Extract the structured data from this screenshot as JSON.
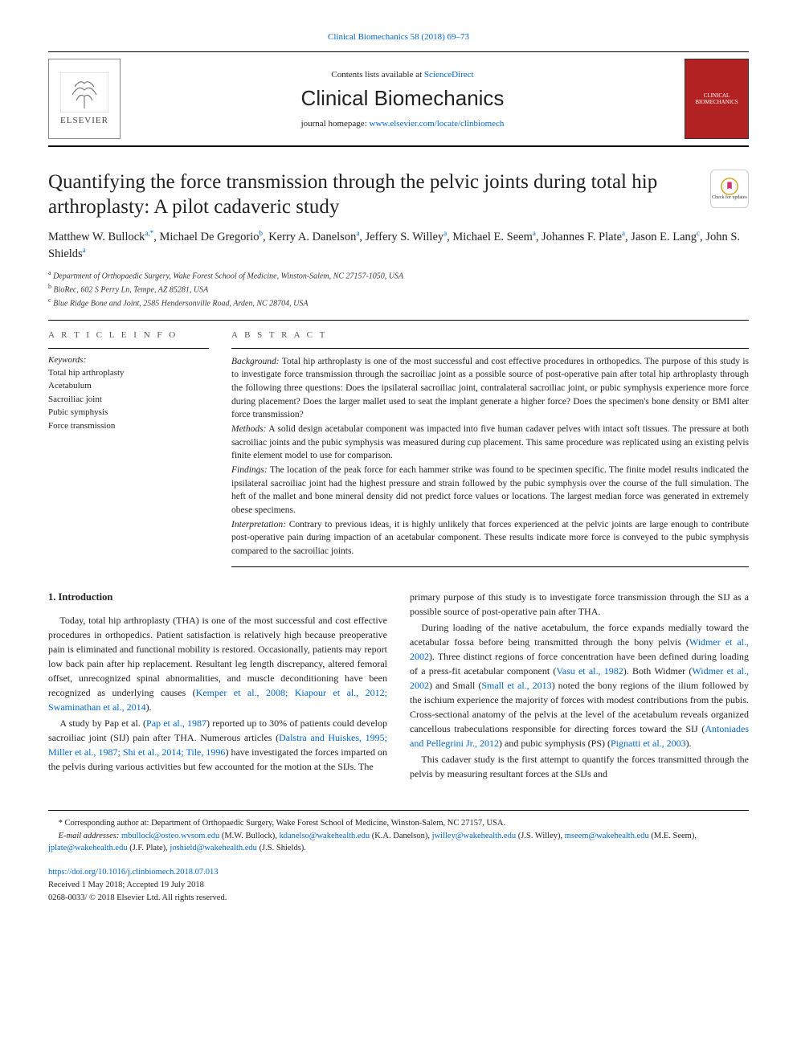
{
  "top_citation_link": "Clinical Biomechanics 58 (2018) 69–73",
  "header": {
    "contents_line_pre": "Contents lists available at ",
    "contents_line_link": "ScienceDirect",
    "journal_name": "Clinical Biomechanics",
    "homepage_pre": "journal homepage: ",
    "homepage_link": "www.elsevier.com/locate/clinbiomech",
    "publisher_name": "ELSEVIER",
    "cover_label": "CLINICAL BIOMECHANICS"
  },
  "check_updates_label": "Check for updates",
  "article": {
    "title": "Quantifying the force transmission through the pelvic joints during total hip arthroplasty: A pilot cadaveric study",
    "authors_html": "Matthew W. Bullock<sup>a,*</sup>, Michael De Gregorio<sup>b</sup>, Kerry A. Danelson<sup>a</sup>, Jeffery S. Willey<sup>a</sup>, Michael E. Seem<sup>a</sup>, Johannes F. Plate<sup>a</sup>, Jason E. Lang<sup>c</sup>, John S. Shields<sup>a</sup>",
    "affiliations": [
      {
        "sup": "a",
        "text": "Department of Orthopaedic Surgery, Wake Forest School of Medicine, Winston-Salem, NC 27157-1050, USA"
      },
      {
        "sup": "b",
        "text": "BioRec, 602 S Perry Ln, Tempe, AZ 85281, USA"
      },
      {
        "sup": "c",
        "text": "Blue Ridge Bone and Joint, 2585 Hendersonville Road, Arden, NC 28704, USA"
      }
    ]
  },
  "labels": {
    "article_info": "A R T I C L E   I N F O",
    "abstract": "A B S T R A C T",
    "keywords_head": "Keywords:"
  },
  "keywords": [
    "Total hip arthroplasty",
    "Acetabulum",
    "Sacroiliac joint",
    "Pubic symphysis",
    "Force transmission"
  ],
  "abstract": {
    "background_label": "Background:",
    "background": " Total hip arthroplasty is one of the most successful and cost effective procedures in orthopedics. The purpose of this study is to investigate force transmission through the sacroiliac joint as a possible source of post-operative pain after total hip arthroplasty through the following three questions: Does the ipsilateral sacroiliac joint, contralateral sacroiliac joint, or pubic symphysis experience more force during placement? Does the larger mallet used to seat the implant generate a higher force? Does the specimen's bone density or BMI alter force transmission?",
    "methods_label": "Methods:",
    "methods": " A solid design acetabular component was impacted into five human cadaver pelves with intact soft tissues. The pressure at both sacroiliac joints and the pubic symphysis was measured during cup placement. This same procedure was replicated using an existing pelvis finite element model to use for comparison.",
    "findings_label": "Findings:",
    "findings": " The location of the peak force for each hammer strike was found to be specimen specific. The finite model results indicated the ipsilateral sacroiliac joint had the highest pressure and strain followed by the pubic symphysis over the course of the full simulation. The heft of the mallet and bone mineral density did not predict force values or locations. The largest median force was generated in extremely obese specimens.",
    "interpretation_label": "Interpretation:",
    "interpretation": " Contrary to previous ideas, it is highly unlikely that forces experienced at the pelvic joints are large enough to contribute post-operative pain during impaction of an acetabular component. These results indicate more force is conveyed to the pubic symphysis compared to the sacroiliac joints."
  },
  "body": {
    "intro_heading": "1. Introduction",
    "col1_p1": "Today, total hip arthroplasty (THA) is one of the most successful and cost effective procedures in orthopedics. Patient satisfaction is relatively high because preoperative pain is eliminated and functional mobility is restored. Occasionally, patients may report low back pain after hip replacement. Resultant leg length discrepancy, altered femoral offset, unrecognized spinal abnormalities, and muscle deconditioning have been recognized as underlying causes (",
    "col1_p1_links": "Kemper et al., 2008; Kiapour et al., 2012; Swaminathan et al., 2014",
    "col1_p1_tail": ").",
    "col1_p2_pre": "A study by Pap et al. (",
    "col1_p2_link1": "Pap et al., 1987",
    "col1_p2_mid1": ") reported up to 30% of patients could develop sacroiliac joint (SIJ) pain after THA. Numerous articles (",
    "col1_p2_link2": "Dalstra and Huiskes, 1995; Miller et al., 1987; Shi et al., 2014; Tile, 1996",
    "col1_p2_mid2": ") have investigated the forces imparted on the pelvis during various activities but few accounted for the motion at the SIJs. The",
    "col2_p0": "primary purpose of this study is to investigate force transmission through the SIJ as a possible source of post-operative pain after THA.",
    "col2_p1_pre": "During loading of the native acetabulum, the force expands medially toward the acetabular fossa before being transmitted through the bony pelvis (",
    "col2_p1_link1": "Widmer et al., 2002",
    "col2_p1_mid1": "). Three distinct regions of force concentration have been defined during loading of a press-fit acetabular component (",
    "col2_p1_link2": "Vasu et al., 1982",
    "col2_p1_mid2": "). Both Widmer (",
    "col2_p1_link3": "Widmer et al., 2002",
    "col2_p1_mid3": ") and Small (",
    "col2_p1_link4": "Small et al., 2013",
    "col2_p1_mid4": ") noted the bony regions of the ilium followed by the ischium experience the majority of forces with modest contributions from the pubis. Cross-sectional anatomy of the pelvis at the level of the acetabulum reveals organized cancellous trabeculations responsible for directing forces toward the SIJ (",
    "col2_p1_link5": "Antoniades and Pellegrini Jr., 2012",
    "col2_p1_mid5": ") and pubic symphysis (PS) (",
    "col2_p1_link6": "Pignatti et al., 2003",
    "col2_p1_tail": ").",
    "col2_p2": "This cadaver study is the first attempt to quantify the forces transmitted through the pelvis by measuring resultant forces at the SIJs and"
  },
  "footnotes": {
    "corr_pre": "* Corresponding author at: Department of Orthopaedic Surgery, Wake Forest School of Medicine, Winston-Salem, NC 27157, USA.",
    "email_label": "E-mail addresses: ",
    "emails": [
      {
        "addr": "mbullock@osteo.wvsom.edu",
        "name": " (M.W. Bullock), "
      },
      {
        "addr": "kdanelso@wakehealth.edu",
        "name": " (K.A. Danelson), "
      },
      {
        "addr": "jwilley@wakehealth.edu",
        "name": " (J.S. Willey), "
      },
      {
        "addr": "mseem@wakehealth.edu",
        "name": " (M.E. Seem), "
      },
      {
        "addr": "jplate@wakehealth.edu",
        "name": " (J.F. Plate), "
      },
      {
        "addr": "joshield@wakehealth.edu",
        "name": " (J.S. Shields)."
      }
    ]
  },
  "footer": {
    "doi": "https://doi.org/10.1016/j.clinbiomech.2018.07.013",
    "received": "Received 1 May 2018; Accepted 19 July 2018",
    "copyright": "0268-0033/ © 2018 Elsevier Ltd. All rights reserved."
  },
  "colors": {
    "link": "#0066cc",
    "text": "#222222",
    "cover_bg": "#b22222",
    "rule": "#000000"
  }
}
